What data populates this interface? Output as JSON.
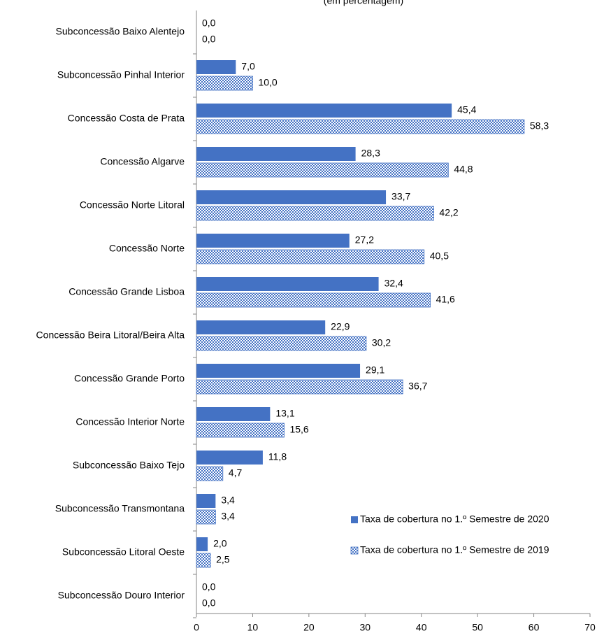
{
  "chart_data": {
    "type": "bar",
    "orientation": "horizontal",
    "title": "(em percentagem)",
    "categories": [
      "Subconcessão Baixo Alentejo",
      "Subconcessão Pinhal Interior",
      "Concessão Costa de Prata",
      "Concessão Algarve",
      "Concessão Norte Litoral",
      "Concessão Norte",
      "Concessão Grande Lisboa",
      "Concessão Beira Litoral/Beira Alta",
      "Concessão Grande Porto",
      "Concessão Interior Norte",
      "Subconcessão Baixo Tejo",
      "Subconcessão Transmontana",
      "Subconcessão Litoral Oeste",
      "Subconcessão Douro Interior"
    ],
    "series": [
      {
        "name": "Taxa de cobertura no 1.º Semestre de 2020",
        "color": "#4472c4",
        "pattern": "solid",
        "values": [
          0,
          7,
          45.4,
          28.3,
          33.7,
          27.2,
          32.4,
          22.9,
          29.1,
          13.1,
          11.8,
          3.4,
          2,
          0
        ],
        "value_labels": [
          "0,0",
          "7,0",
          "45,4",
          "28,3",
          "33,7",
          "27,2",
          "32,4",
          "22,9",
          "29,1",
          "13,1",
          "11,8",
          "3,4",
          "2,0",
          "0,0"
        ]
      },
      {
        "name": "Taxa de cobertura no 1.º Semestre de 2019",
        "color": "#4472c4",
        "pattern": "checkered",
        "values": [
          0,
          10,
          58.3,
          44.8,
          42.2,
          40.5,
          41.6,
          30.2,
          36.7,
          15.6,
          4.7,
          3.4,
          2.5,
          0
        ],
        "value_labels": [
          "0,0",
          "10,0",
          "58,3",
          "44,8",
          "42,2",
          "40,5",
          "41,6",
          "30,2",
          "36,7",
          "15,6",
          "4,7",
          "3,4",
          "2,5",
          "0,0"
        ]
      }
    ],
    "xlim": [
      0,
      70
    ],
    "xticks": [
      0,
      10,
      20,
      30,
      40,
      50,
      60,
      70
    ],
    "legend": "lower right"
  }
}
